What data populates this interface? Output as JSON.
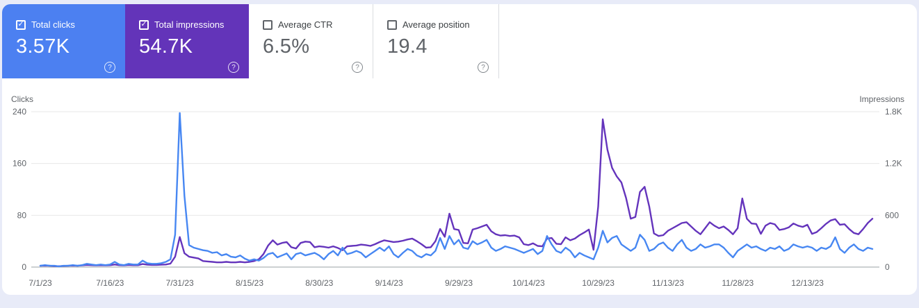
{
  "cards": [
    {
      "label": "Total clicks",
      "value": "3.57K",
      "checked": true,
      "color": "#4c80f1"
    },
    {
      "label": "Total impressions",
      "value": "54.7K",
      "checked": true,
      "color": "#6334b9"
    },
    {
      "label": "Average CTR",
      "value": "6.5%",
      "checked": false,
      "color": "#ffffff"
    },
    {
      "label": "Average position",
      "value": "19.4",
      "checked": false,
      "color": "#ffffff"
    }
  ],
  "icons": {
    "help": "?",
    "check": "✓"
  },
  "chart": {
    "left_axis_title": "Clicks",
    "right_axis_title": "Impressions",
    "left_ticks": [
      "240",
      "160",
      "80",
      "0"
    ],
    "left_tick_values": [
      240,
      160,
      80,
      0
    ],
    "right_ticks": [
      "1.8K",
      "1.2K",
      "600",
      "0"
    ],
    "right_tick_values": [
      1800,
      1200,
      600,
      0
    ],
    "x_tick_labels": [
      "7/1/23",
      "7/16/23",
      "7/31/23",
      "8/15/23",
      "8/30/23",
      "9/14/23",
      "9/29/23",
      "10/14/23",
      "10/29/23",
      "11/13/23",
      "11/28/23",
      "12/13/23"
    ],
    "grid_color": "#e7e7e7",
    "baseline_color": "#9aa0a6"
  },
  "chart_data": {
    "type": "line",
    "title": "Search performance over time",
    "x_start": "7/1/23",
    "x_end": "12/27/23",
    "x_cadence": "daily",
    "left_ylim": [
      0,
      240
    ],
    "right_ylim": [
      0,
      1800
    ],
    "legend_position": "none",
    "grid": true,
    "series": [
      {
        "name": "Total clicks",
        "axis": "left",
        "color": "#4787f2",
        "values": [
          2,
          3,
          2,
          2,
          1,
          2,
          2,
          3,
          2,
          3,
          5,
          4,
          3,
          4,
          3,
          4,
          8,
          4,
          3,
          5,
          4,
          4,
          10,
          6,
          5,
          5,
          6,
          8,
          12,
          50,
          238,
          110,
          34,
          30,
          28,
          26,
          25,
          22,
          23,
          18,
          20,
          16,
          15,
          18,
          13,
          10,
          12,
          10,
          14,
          20,
          22,
          15,
          18,
          21,
          12,
          20,
          22,
          18,
          20,
          22,
          18,
          12,
          20,
          25,
          18,
          30,
          20,
          22,
          25,
          22,
          15,
          20,
          25,
          30,
          25,
          32,
          20,
          15,
          22,
          28,
          25,
          18,
          15,
          20,
          18,
          25,
          45,
          28,
          48,
          35,
          42,
          30,
          28,
          40,
          35,
          38,
          42,
          30,
          25,
          28,
          32,
          30,
          28,
          25,
          22,
          25,
          28,
          20,
          25,
          48,
          35,
          25,
          22,
          30,
          25,
          15,
          22,
          18,
          15,
          12,
          30,
          56,
          38,
          45,
          48,
          35,
          30,
          25,
          30,
          50,
          42,
          25,
          28,
          35,
          38,
          30,
          25,
          35,
          42,
          30,
          25,
          28,
          35,
          30,
          32,
          35,
          35,
          30,
          22,
          15,
          25,
          30,
          35,
          30,
          32,
          28,
          25,
          30,
          28,
          32,
          25,
          28,
          35,
          32,
          30,
          32,
          30,
          25,
          30,
          28,
          32,
          46,
          28,
          22,
          30,
          35,
          28,
          25,
          30,
          28
        ]
      },
      {
        "name": "Total impressions",
        "axis": "right",
        "color": "#6434bc",
        "values": [
          15,
          18,
          15,
          12,
          10,
          14,
          15,
          18,
          15,
          20,
          25,
          22,
          20,
          22,
          20,
          22,
          30,
          22,
          20,
          25,
          22,
          22,
          35,
          28,
          25,
          25,
          28,
          30,
          40,
          120,
          348,
          160,
          120,
          110,
          100,
          70,
          65,
          60,
          55,
          55,
          60,
          55,
          55,
          60,
          55,
          60,
          70,
          90,
          150,
          250,
          310,
          260,
          280,
          290,
          230,
          215,
          280,
          295,
          290,
          230,
          240,
          235,
          225,
          240,
          222,
          195,
          240,
          245,
          250,
          260,
          255,
          245,
          265,
          290,
          310,
          300,
          290,
          295,
          305,
          320,
          330,
          300,
          265,
          225,
          230,
          300,
          442,
          350,
          619,
          440,
          430,
          280,
          275,
          435,
          450,
          470,
          490,
          415,
          380,
          365,
          370,
          360,
          365,
          345,
          265,
          255,
          275,
          245,
          240,
          330,
          337,
          270,
          265,
          345,
          310,
          330,
          370,
          400,
          435,
          200,
          700,
          1712,
          1360,
          1150,
          1050,
          980,
          800,
          560,
          580,
          870,
          930,
          700,
          390,
          360,
          370,
          420,
          450,
          480,
          510,
          520,
          470,
          420,
          380,
          450,
          520,
          480,
          450,
          470,
          430,
          380,
          450,
          795,
          560,
          505,
          500,
          385,
          480,
          510,
          495,
          430,
          440,
          460,
          505,
          480,
          465,
          490,
          385,
          405,
          450,
          500,
          540,
          555,
          490,
          497,
          440,
          395,
          380,
          440,
          510,
          560
        ]
      }
    ]
  }
}
